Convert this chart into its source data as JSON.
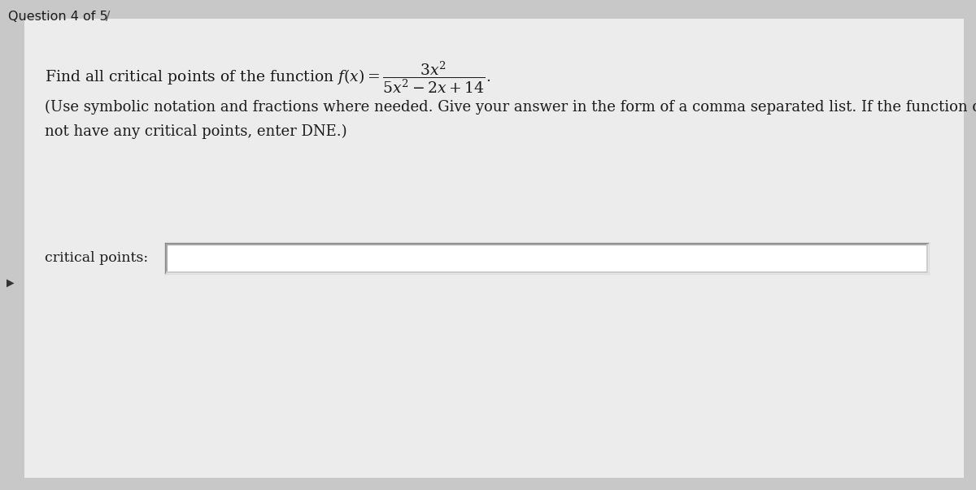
{
  "outer_bg_color": "#c8c8c8",
  "card_color": "#ececec",
  "header_text": "Question 4 of 5",
  "instruction_line1": "(Use symbolic notation and fractions where needed. Give your answer in the form of a comma separated list. If the function does",
  "instruction_line2": "not have any critical points, enter DNE.)",
  "label_text": "critical points:",
  "input_box_color": "#ffffff",
  "input_box_border_dark": "#999999",
  "input_box_border_light": "#e0e0e0",
  "text_color": "#1a1a1a",
  "font_size_main": 13.5,
  "font_size_instruction": 13.0,
  "font_size_label": 12.5,
  "font_size_header": 11.5
}
